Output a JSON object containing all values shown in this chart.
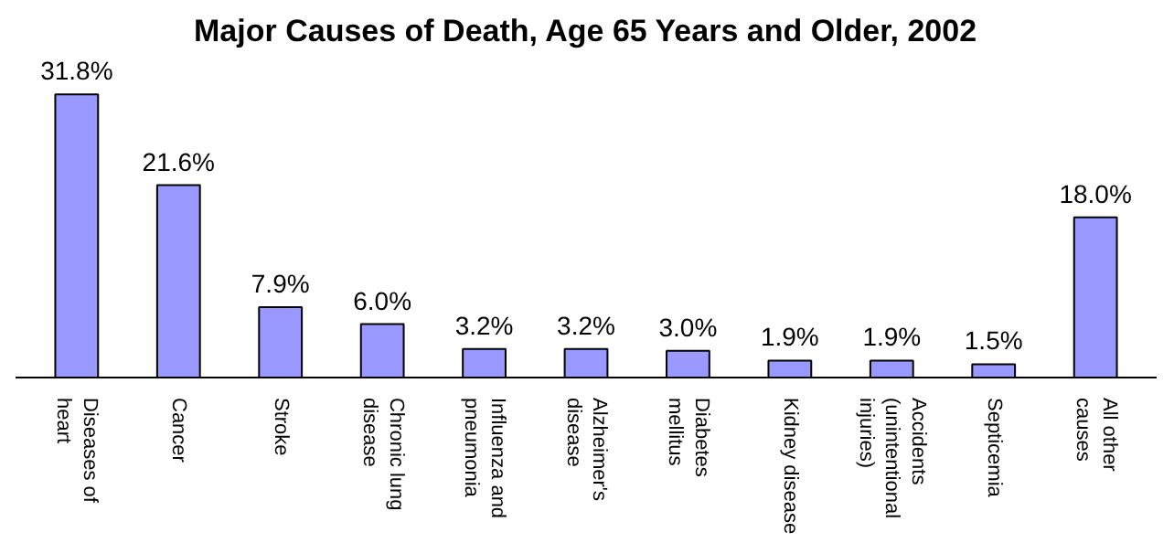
{
  "chart_data": {
    "type": "bar",
    "title": "Major Causes of Death, Age 65 Years and Older, 2002",
    "categories": [
      "Diseases of heart",
      "Cancer",
      "Stroke",
      "Chronic lung disease",
      "Influenza and pneumonia",
      "Alzheimer's disease",
      "Diabetes mellitus",
      "Kidney disease",
      "Accidents (unintentional injuries)",
      "Septicemia",
      "All other causes"
    ],
    "values": [
      31.8,
      21.6,
      7.9,
      6.0,
      3.2,
      3.2,
      3.0,
      1.9,
      1.9,
      1.5,
      18.0
    ],
    "value_labels": [
      "31.8%",
      "21.6%",
      "7.9%",
      "6.0%",
      "3.2%",
      "3.2%",
      "3.0%",
      "1.9%",
      "1.9%",
      "1.5%",
      "18.0%"
    ],
    "color": "#9999ff"
  }
}
